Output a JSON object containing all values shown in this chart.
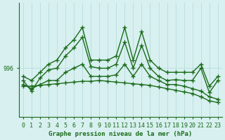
{
  "bg_color": "#d8f0f0",
  "grid_color": "#b0d8d8",
  "line_color": "#1a6b1a",
  "hours": [
    0,
    1,
    2,
    3,
    4,
    5,
    6,
    7,
    8,
    9,
    10,
    11,
    12,
    13,
    14,
    15,
    16,
    17,
    18,
    19,
    20,
    21,
    22,
    23
  ],
  "pressure_main": [
    994.5,
    993.2,
    994.8,
    995.8,
    996.0,
    997.5,
    998.5,
    999.8,
    996.2,
    996.0,
    996.0,
    996.5,
    999.2,
    996.0,
    998.8,
    996.0,
    995.0,
    994.5,
    994.6,
    994.5,
    994.5,
    996.0,
    993.0,
    994.5
  ],
  "pressure_avg": [
    993.8,
    993.8,
    993.9,
    994.0,
    994.1,
    994.2,
    994.3,
    994.4,
    994.4,
    994.5,
    994.4,
    994.3,
    994.2,
    994.1,
    994.0,
    993.9,
    993.7,
    993.5,
    993.3,
    993.1,
    992.9,
    992.5,
    992.0,
    991.8
  ],
  "pressure_min": [
    994.0,
    993.5,
    994.0,
    994.5,
    994.5,
    995.5,
    996.0,
    996.5,
    995.0,
    995.0,
    995.0,
    995.2,
    996.5,
    995.0,
    996.5,
    995.0,
    994.5,
    994.0,
    994.0,
    993.8,
    993.5,
    993.2,
    992.5,
    992.2
  ],
  "pressure_max": [
    995.0,
    994.5,
    995.5,
    996.5,
    997.0,
    998.5,
    999.5,
    1001.0,
    997.0,
    997.0,
    997.0,
    997.5,
    1001.0,
    997.0,
    1000.5,
    997.0,
    996.0,
    995.5,
    995.5,
    995.5,
    995.5,
    996.5,
    993.8,
    995.0
  ],
  "xlim": [
    -0.5,
    23.5
  ],
  "ylim": [
    990,
    1004
  ],
  "yticks": [
    996
  ],
  "xticks": [
    0,
    1,
    2,
    3,
    4,
    5,
    6,
    7,
    8,
    9,
    10,
    11,
    12,
    13,
    14,
    15,
    16,
    17,
    18,
    19,
    20,
    21,
    22,
    23
  ],
  "xlabel": "Graphe pression niveau de la mer (hPa)",
  "tick_fontsize": 6
}
